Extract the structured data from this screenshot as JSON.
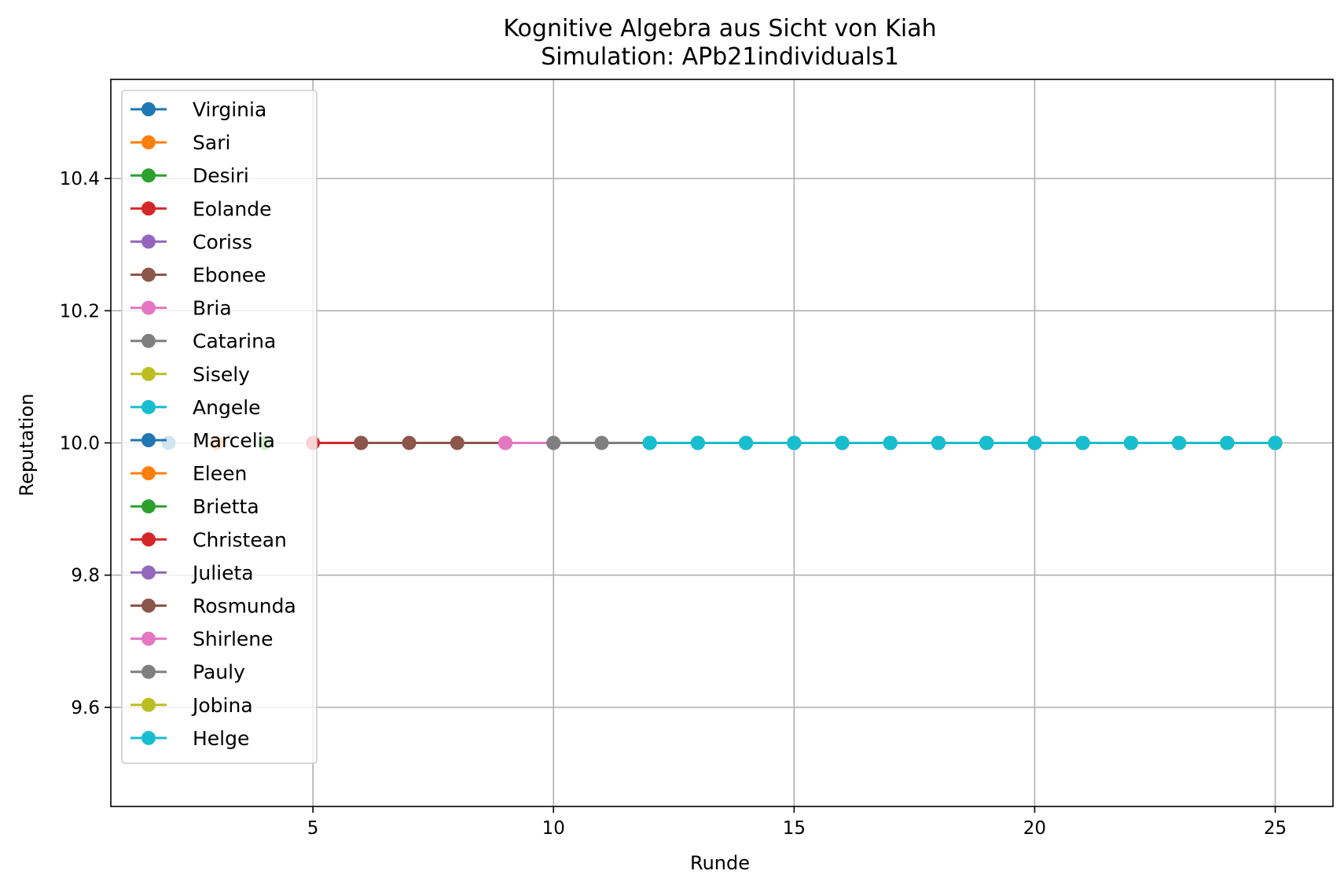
{
  "chart_data": {
    "type": "line",
    "title": "Kognitive Algebra aus Sicht von Kiah",
    "subtitle": "Simulation: APb21individuals1",
    "xlabel": "Runde",
    "ylabel": "Reputation",
    "xlim": [
      0.8,
      26.2
    ],
    "ylim": [
      9.45,
      10.55
    ],
    "xticks": [
      5,
      10,
      15,
      20,
      25
    ],
    "yticks": [
      9.6,
      9.8,
      10.0,
      10.2,
      10.4
    ],
    "ytick_labels": [
      "9.6",
      "9.8",
      "10.0",
      "10.2",
      "10.4"
    ],
    "grid": true,
    "legend_position": "upper-left",
    "series": [
      {
        "name": "Virginia",
        "color": "#1f77b4",
        "x": [
          2
        ],
        "y": [
          10.0
        ]
      },
      {
        "name": "Sari",
        "color": "#ff7f0e",
        "x": [
          3
        ],
        "y": [
          10.0
        ]
      },
      {
        "name": "Desiri",
        "color": "#2ca02c",
        "x": [
          4
        ],
        "y": [
          10.0
        ]
      },
      {
        "name": "Eolande",
        "color": "#d62728",
        "x": [
          5,
          6
        ],
        "y": [
          10.0,
          10.0
        ]
      },
      {
        "name": "Coriss",
        "color": "#9467bd",
        "x": [
          6
        ],
        "y": [
          10.0
        ]
      },
      {
        "name": "Ebonee",
        "color": "#8c564b",
        "x": [
          6,
          7,
          8,
          9
        ],
        "y": [
          10.0,
          10.0,
          10.0,
          10.0
        ]
      },
      {
        "name": "Bria",
        "color": "#e377c2",
        "x": [
          9,
          10
        ],
        "y": [
          10.0,
          10.0
        ]
      },
      {
        "name": "Catarina",
        "color": "#7f7f7f",
        "x": [
          10,
          11,
          12
        ],
        "y": [
          10.0,
          10.0,
          10.0
        ]
      },
      {
        "name": "Sisely",
        "color": "#bcbd22",
        "x": [
          12
        ],
        "y": [
          10.0
        ]
      },
      {
        "name": "Angele",
        "color": "#17becf",
        "x": [
          12,
          13,
          14,
          15,
          16,
          17,
          18,
          19,
          20,
          21,
          22,
          23,
          24,
          25
        ],
        "y": [
          10.0,
          10.0,
          10.0,
          10.0,
          10.0,
          10.0,
          10.0,
          10.0,
          10.0,
          10.0,
          10.0,
          10.0,
          10.0,
          10.0
        ]
      },
      {
        "name": "Marcelia",
        "color": "#1f77b4",
        "x": [
          13,
          14,
          15,
          16,
          17,
          18,
          19,
          20,
          21,
          22,
          23,
          24,
          25
        ],
        "y": [
          10.0,
          10.0,
          10.0,
          10.0,
          10.0,
          10.0,
          10.0,
          10.0,
          10.0,
          10.0,
          10.0,
          10.0,
          10.0
        ]
      },
      {
        "name": "Eleen",
        "color": "#ff7f0e",
        "x": [
          14,
          15,
          16,
          17,
          18,
          19,
          20,
          21,
          22,
          23,
          24,
          25
        ],
        "y": [
          10.0,
          10.0,
          10.0,
          10.0,
          10.0,
          10.0,
          10.0,
          10.0,
          10.0,
          10.0,
          10.0,
          10.0
        ]
      },
      {
        "name": "Brietta",
        "color": "#2ca02c",
        "x": [
          15,
          16,
          17,
          18,
          19,
          20,
          21,
          22,
          23,
          24,
          25
        ],
        "y": [
          10.0,
          10.0,
          10.0,
          10.0,
          10.0,
          10.0,
          10.0,
          10.0,
          10.0,
          10.0,
          10.0
        ]
      },
      {
        "name": "Christean",
        "color": "#d62728",
        "x": [
          16,
          17,
          18,
          19,
          20,
          21,
          22,
          23,
          24,
          25
        ],
        "y": [
          10.0,
          10.0,
          10.0,
          10.0,
          10.0,
          10.0,
          10.0,
          10.0,
          10.0,
          10.0
        ]
      },
      {
        "name": "Julieta",
        "color": "#9467bd",
        "x": [
          17,
          18,
          19,
          20,
          21,
          22,
          23,
          24,
          25
        ],
        "y": [
          10.0,
          10.0,
          10.0,
          10.0,
          10.0,
          10.0,
          10.0,
          10.0,
          10.0
        ]
      },
      {
        "name": "Rosmunda",
        "color": "#8c564b",
        "x": [
          18,
          19,
          20,
          21,
          22,
          23,
          24,
          25
        ],
        "y": [
          10.0,
          10.0,
          10.0,
          10.0,
          10.0,
          10.0,
          10.0,
          10.0
        ]
      },
      {
        "name": "Shirlene",
        "color": "#e377c2",
        "x": [
          19,
          20,
          21,
          22,
          23,
          24,
          25
        ],
        "y": [
          10.0,
          10.0,
          10.0,
          10.0,
          10.0,
          10.0,
          10.0
        ]
      },
      {
        "name": "Pauly",
        "color": "#7f7f7f",
        "x": [
          20,
          21,
          22,
          23,
          24,
          25
        ],
        "y": [
          10.0,
          10.0,
          10.0,
          10.0,
          10.0,
          10.0
        ]
      },
      {
        "name": "Jobina",
        "color": "#bcbd22",
        "x": [
          21,
          22,
          23,
          24,
          25
        ],
        "y": [
          10.0,
          10.0,
          10.0,
          10.0,
          10.0
        ]
      },
      {
        "name": "Helge",
        "color": "#17becf",
        "x": [
          12,
          13,
          14,
          15,
          16,
          17,
          18,
          19,
          20,
          21,
          22,
          23,
          24,
          25
        ],
        "y": [
          10.0,
          10.0,
          10.0,
          10.0,
          10.0,
          10.0,
          10.0,
          10.0,
          10.0,
          10.0,
          10.0,
          10.0,
          10.0,
          10.0
        ]
      }
    ]
  }
}
